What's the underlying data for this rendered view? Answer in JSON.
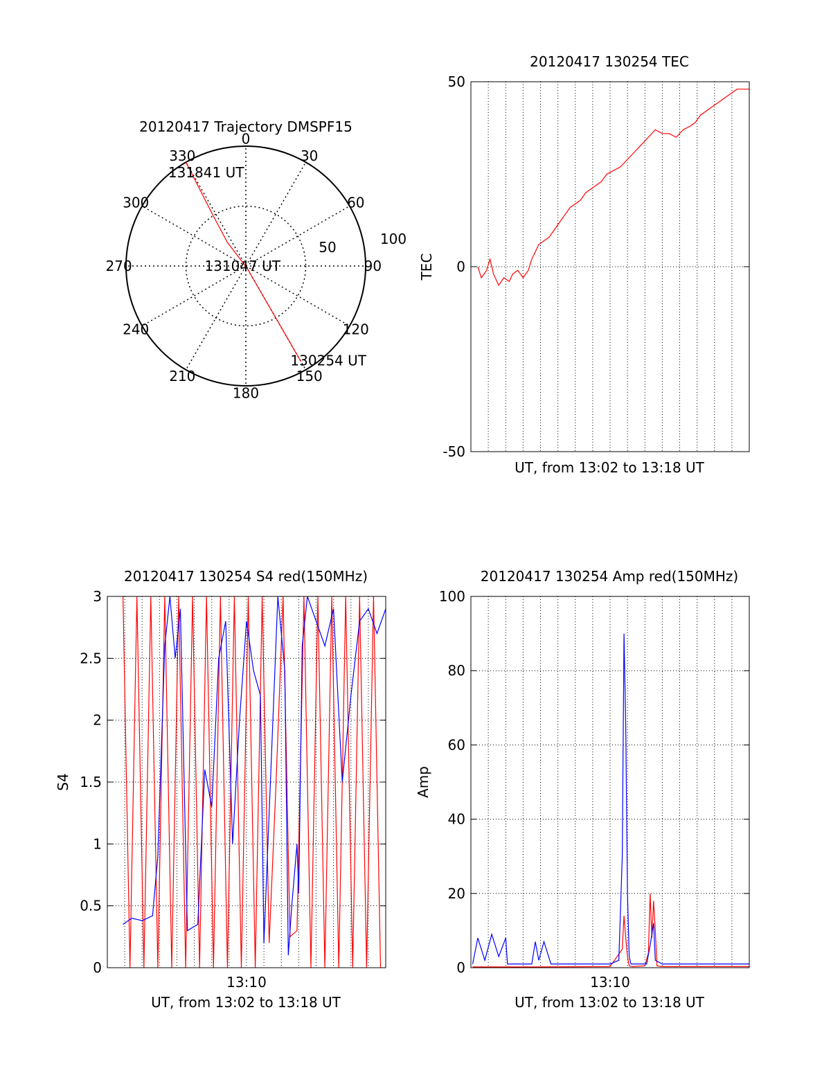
{
  "chart_data": [
    {
      "id": "trajectory",
      "type": "polar",
      "title": "20120417 Trajectory DMSPF15",
      "angle_labels": [
        "0",
        "30",
        "60",
        "90",
        "120",
        "150",
        "180",
        "210",
        "240",
        "270",
        "300",
        "330"
      ],
      "radial_labels": [
        "50",
        "100"
      ],
      "radial_max": 100,
      "grid": true,
      "series": [
        {
          "color": "#ff0000",
          "points": [
            {
              "az": 330,
              "r": 100
            },
            {
              "az": 329,
              "r": 75
            },
            {
              "az": 327,
              "r": 50
            },
            {
              "az": 322,
              "r": 25
            },
            {
              "az": 150,
              "r": 2
            },
            {
              "az": 150,
              "r": 25
            },
            {
              "az": 150,
              "r": 50
            },
            {
              "az": 150,
              "r": 75
            },
            {
              "az": 150,
              "r": 92
            }
          ]
        }
      ],
      "annotations": [
        {
          "text": "131841 UT",
          "az": 340,
          "r": 83
        },
        {
          "text": "131047 UT",
          "az": 90,
          "r": 2
        },
        {
          "text": "130254 UT",
          "az": 137,
          "r": 108
        }
      ]
    },
    {
      "id": "tec",
      "type": "line",
      "title": "20120417 130254 TEC",
      "xlabel": "UT, from 13:02 to 13:18 UT",
      "ylabel": "TEC",
      "xlim": [
        0,
        16
      ],
      "ylim": [
        -50,
        50
      ],
      "yticks": [
        -50,
        0,
        50
      ],
      "xtick_labels": [],
      "grid": true,
      "series": [
        {
          "color": "#ff0000",
          "x": [
            0.4,
            0.6,
            0.9,
            1.1,
            1.3,
            1.6,
            1.9,
            2.2,
            2.4,
            2.7,
            3.0,
            3.3,
            3.5,
            3.7,
            3.9,
            4.2,
            4.5,
            4.8,
            5.1,
            5.4,
            5.7,
            6.0,
            6.3,
            6.6,
            6.9,
            7.2,
            7.5,
            7.8,
            8.2,
            8.6,
            9.0,
            9.4,
            9.8,
            10.2,
            10.6,
            11.0,
            11.4,
            11.8,
            12.2,
            12.6,
            12.9,
            13.2,
            13.5,
            13.8,
            14.1,
            14.4,
            14.7,
            15.0,
            15.3,
            15.6,
            16.0
          ],
          "y": [
            0,
            -3,
            -1,
            2,
            -2,
            -5,
            -3,
            -4,
            -2,
            -1,
            -3,
            -1,
            2,
            4,
            6,
            7,
            8,
            10,
            12,
            14,
            16,
            17,
            18,
            20,
            21,
            22,
            23,
            25,
            26,
            27,
            29,
            31,
            33,
            35,
            37,
            36,
            36,
            35,
            37,
            38,
            39,
            41,
            42,
            43,
            44,
            45,
            46,
            47,
            48,
            48,
            48
          ]
        }
      ]
    },
    {
      "id": "s4",
      "type": "line",
      "title": "20120417 130254 S4 red(150MHz)",
      "xlabel": "UT, from 13:02 to 13:18 UT",
      "ylabel": "S4",
      "xlim": [
        0,
        16
      ],
      "ylim": [
        0,
        3
      ],
      "yticks": [
        0,
        0.5,
        1,
        1.5,
        2,
        2.5,
        3
      ],
      "ytick_labels": [
        "0",
        "0.5",
        "1",
        "1.5",
        "2",
        "2.5",
        "3"
      ],
      "xtick_labels": [
        {
          "value": 8,
          "label": "13:10"
        }
      ],
      "grid": true,
      "series": [
        {
          "color": "#0000ff",
          "x": [
            0.9,
            1.4,
            2.0,
            2.6,
            2.9,
            3.3,
            3.6,
            3.9,
            4.2,
            4.6,
            5.2,
            5.6,
            6.0,
            6.4,
            6.8,
            7.2,
            7.6,
            8.0,
            8.4,
            8.8,
            9.0,
            9.4,
            9.8,
            10.2,
            10.4,
            10.6,
            10.9,
            11.0,
            11.2,
            11.5,
            12.0,
            12.5,
            13.0,
            13.5,
            14.0,
            14.5,
            15.0,
            15.5,
            16.0
          ],
          "y": [
            0.35,
            0.4,
            0.38,
            0.42,
            0.9,
            2.6,
            3.0,
            2.5,
            2.9,
            0.3,
            0.35,
            1.6,
            1.3,
            2.5,
            2.8,
            1.0,
            2.0,
            2.8,
            2.4,
            2.2,
            0.2,
            1.6,
            3.0,
            2.4,
            0.1,
            0.5,
            1.0,
            0.6,
            2.6,
            3.0,
            2.8,
            2.6,
            2.9,
            1.5,
            2.2,
            2.8,
            2.9,
            2.7,
            2.9
          ]
        },
        {
          "color": "#ff0000",
          "x": [
            0.9,
            1.3,
            1.7,
            2.1,
            2.5,
            2.9,
            3.3,
            3.7,
            4.1,
            4.5,
            4.9,
            5.3,
            5.7,
            6.1,
            6.5,
            6.9,
            7.3,
            7.7,
            8.1,
            8.5,
            8.9,
            9.3,
            9.7,
            10.1,
            10.5,
            10.9,
            11.3,
            11.7,
            12.1,
            12.5,
            12.9,
            13.3,
            13.7,
            14.1,
            14.5,
            14.9,
            15.3,
            15.7
          ],
          "y": [
            3.0,
            0.0,
            3.0,
            0.0,
            3.0,
            0.0,
            3.0,
            0.0,
            3.0,
            0.0,
            3.0,
            0.0,
            3.0,
            0.0,
            3.0,
            0.0,
            3.0,
            0.0,
            3.0,
            0.0,
            3.0,
            0.2,
            1.5,
            3.0,
            0.25,
            0.3,
            3.0,
            0.0,
            3.0,
            0.0,
            3.0,
            0.0,
            3.0,
            0.0,
            3.0,
            0.0,
            3.0,
            0.0
          ]
        }
      ]
    },
    {
      "id": "amp",
      "type": "line",
      "title": "20120417 130254 Amp red(150MHz)",
      "xlabel": "UT, from 13:02 to 13:18 UT",
      "ylabel": "Amp",
      "xlim": [
        0,
        16
      ],
      "ylim": [
        0,
        100
      ],
      "yticks": [
        0,
        20,
        40,
        60,
        80,
        100
      ],
      "ytick_labels": [
        "0",
        "20",
        "40",
        "60",
        "80",
        "100"
      ],
      "xtick_labels": [
        {
          "value": 8,
          "label": "13:10"
        }
      ],
      "grid": true,
      "series": [
        {
          "color": "#0000ff",
          "x": [
            0.1,
            0.4,
            0.8,
            1.2,
            1.6,
            2.0,
            2.1,
            2.5,
            3.0,
            3.5,
            3.7,
            3.9,
            4.2,
            4.6,
            4.7,
            5.0,
            6.0,
            7.0,
            8.0,
            8.5,
            8.7,
            8.8,
            8.9,
            9.0,
            9.1,
            9.2,
            9.4,
            9.8,
            10.1,
            10.3,
            10.5,
            10.6,
            11.0,
            12.0,
            13.0,
            14.0,
            15.0,
            16.0
          ],
          "y": [
            1,
            8,
            2,
            9,
            3,
            8,
            1,
            1,
            1,
            1,
            7,
            2,
            7,
            1,
            1,
            1,
            1,
            1,
            1,
            2,
            30,
            90,
            65,
            20,
            3,
            1,
            1,
            1,
            1,
            6,
            12,
            2,
            1,
            1,
            1,
            1,
            1,
            1
          ]
        },
        {
          "color": "#ff0000",
          "x": [
            0.1,
            2.0,
            4.0,
            8.0,
            8.7,
            8.8,
            8.9,
            9.0,
            9.1,
            9.3,
            10.0,
            10.2,
            10.3,
            10.4,
            10.5,
            10.6,
            10.7,
            11.0,
            16.0
          ],
          "y": [
            0.2,
            0.2,
            0.2,
            0.3,
            5,
            14,
            8,
            3,
            0.5,
            0.3,
            0.5,
            4,
            20,
            8,
            18,
            10,
            0.5,
            0.3,
            0.3
          ]
        }
      ]
    }
  ]
}
